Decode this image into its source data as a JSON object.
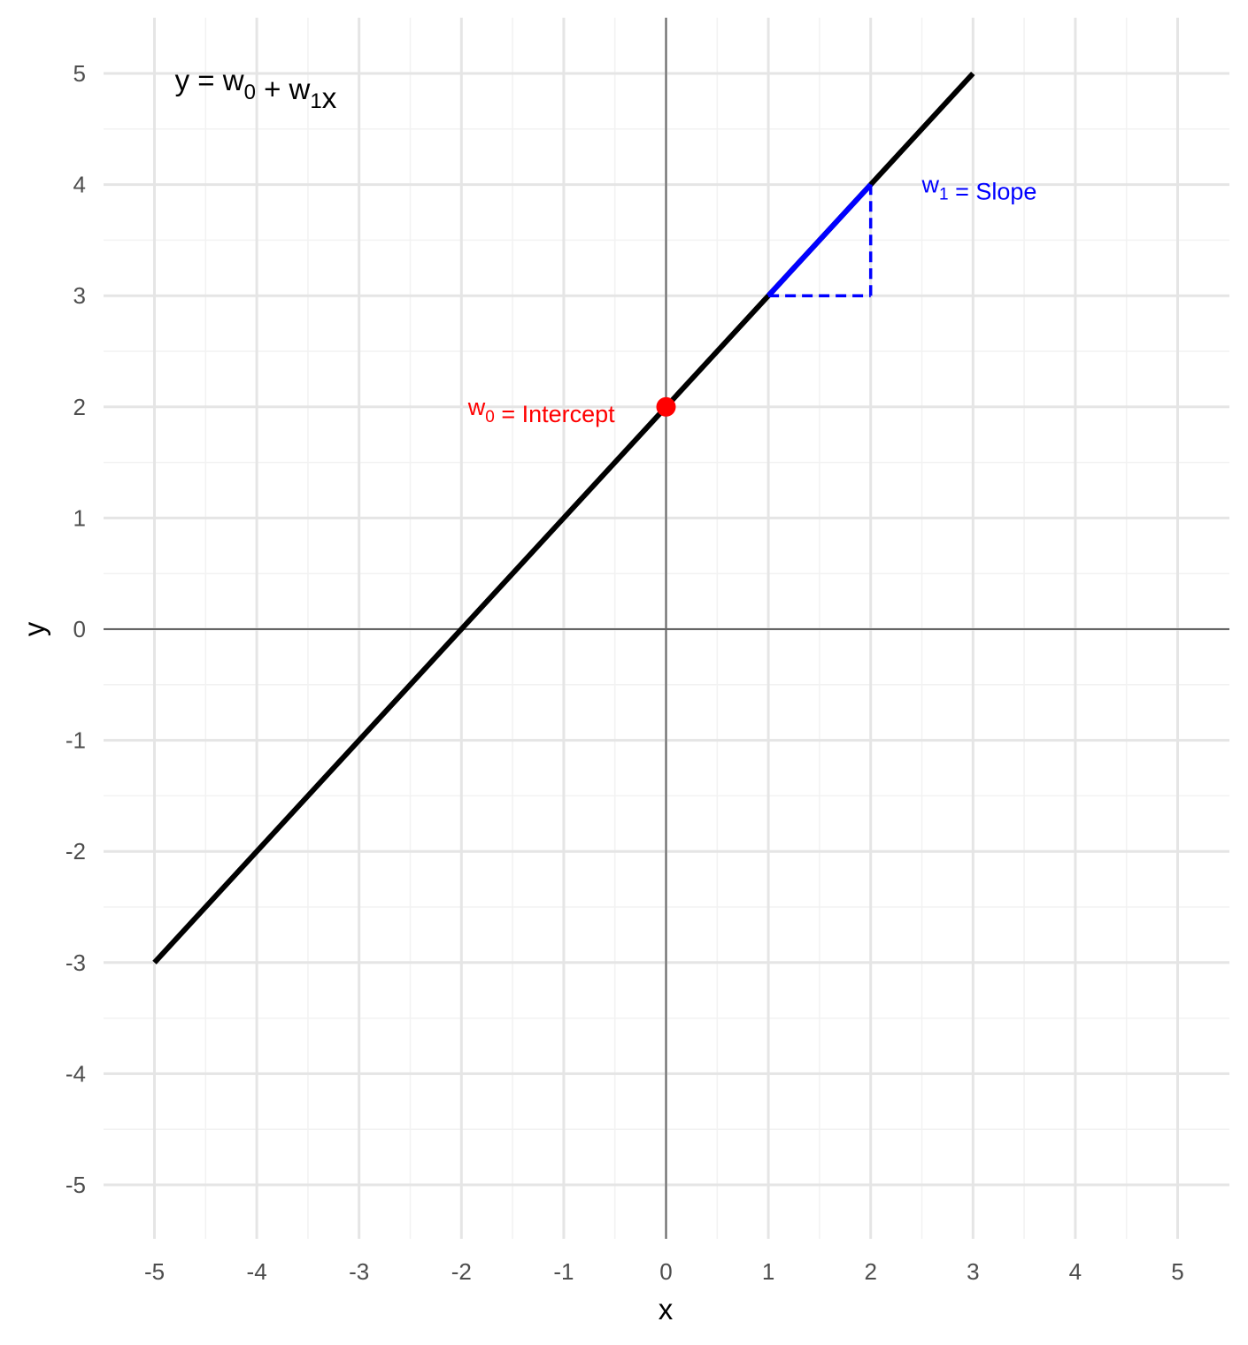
{
  "chart_data": {
    "type": "line",
    "xlabel": "x",
    "ylabel": "y",
    "xlim": [
      -5,
      5
    ],
    "ylim": [
      -5,
      5
    ],
    "x_ticks": [
      -5,
      -4,
      -3,
      -2,
      -1,
      0,
      1,
      2,
      3,
      4,
      5
    ],
    "y_ticks": [
      -5,
      -4,
      -3,
      -2,
      -1,
      0,
      1,
      2,
      3,
      4,
      5
    ],
    "x_tick_labels": [
      "-5",
      "-4",
      "-3",
      "-2",
      "-1",
      "0",
      "1",
      "2",
      "3",
      "4",
      "5"
    ],
    "y_tick_labels": [
      "-5",
      "-4",
      "-3",
      "-2",
      "-1",
      "0",
      "1",
      "2",
      "3",
      "4",
      "5"
    ],
    "grid": true,
    "reference_lines": {
      "x": 0,
      "y": 0,
      "color": "#666666"
    },
    "series": [
      {
        "x": [
          -5,
          3
        ],
        "y": [
          -3,
          5
        ],
        "color": "#000000"
      }
    ],
    "slope_triangle": {
      "hypotenuse": {
        "x": [
          1,
          2
        ],
        "y": [
          3,
          4
        ]
      },
      "run": {
        "x": [
          1,
          2
        ],
        "y": [
          3,
          3
        ]
      },
      "rise": {
        "x": [
          2,
          2
        ],
        "y": [
          3,
          4
        ]
      },
      "color": "#0000ff"
    },
    "intercept_point": {
      "x": 0,
      "y": 2,
      "color": "#ff0000"
    },
    "annotations": [
      {
        "id": "equation",
        "x": -4.8,
        "y": 4.85,
        "color": "#000000",
        "parts": [
          {
            "t": "y = w",
            "sub": false
          },
          {
            "t": "0",
            "sub": true
          },
          {
            "t": " + w",
            "sub": false
          },
          {
            "t": "1",
            "sub": true
          },
          {
            "t": "x",
            "sub": false
          }
        ]
      },
      {
        "id": "intercept",
        "x": -0.5,
        "y": 2,
        "color": "#ff0000",
        "parts": [
          {
            "t": "w",
            "sub": false
          },
          {
            "t": "0",
            "sub": true
          },
          {
            "t": " = Intercept",
            "sub": false
          }
        ]
      },
      {
        "id": "slope",
        "x": 2.5,
        "y": 4,
        "color": "#0000ff",
        "parts": [
          {
            "t": "w",
            "sub": false
          },
          {
            "t": "1",
            "sub": true
          },
          {
            "t": " = Slope",
            "sub": false
          }
        ]
      }
    ]
  }
}
